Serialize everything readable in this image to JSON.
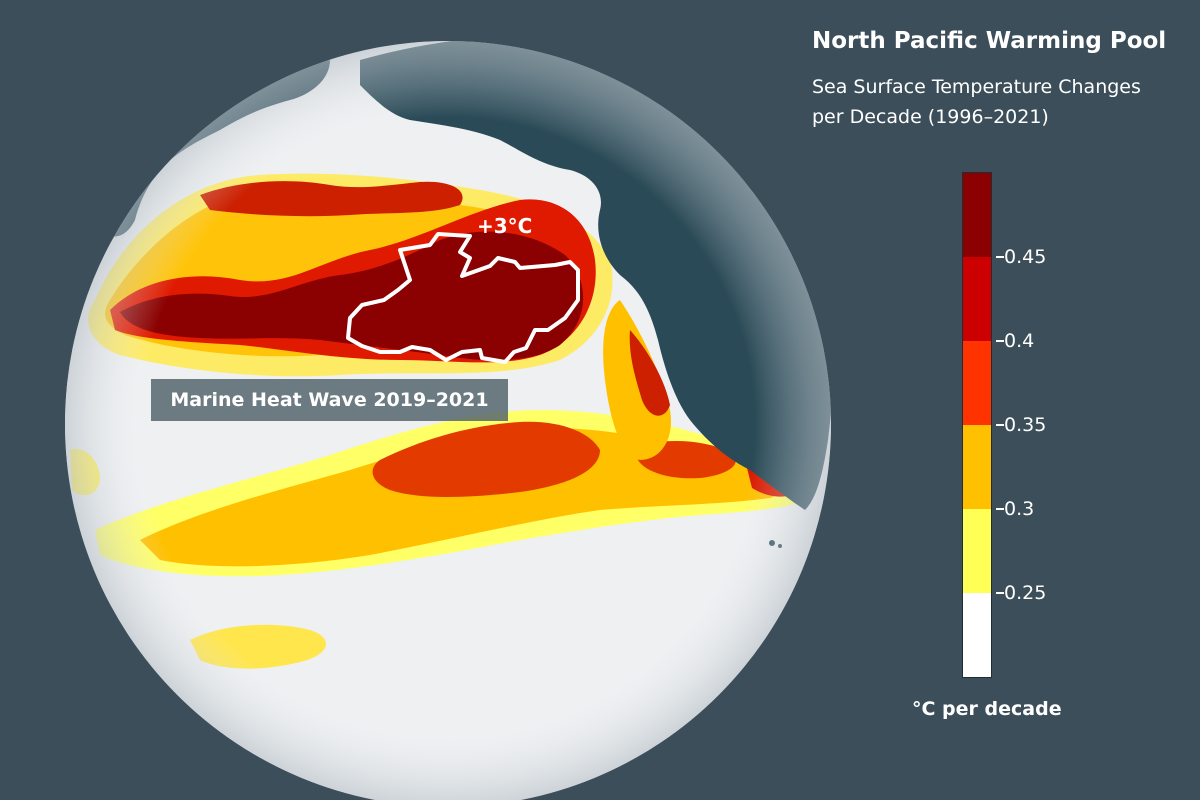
{
  "title": "North Pacific Warming Pool",
  "subtitle_line1": "Sea Surface Temperature Changes",
  "subtitle_line2": "per Decade (1996–2021)",
  "legend": {
    "unit": "°C per decade",
    "bins": [
      {
        "range": "> 0.45",
        "color": "#8b0000"
      },
      {
        "range": "0.4 – 0.45",
        "color": "#cc0000"
      },
      {
        "range": "0.35 – 0.4",
        "color": "#ff3300"
      },
      {
        "range": "0.3 – 0.35",
        "color": "#ffc000"
      },
      {
        "range": "0.25 – 0.3",
        "color": "#ffff55"
      },
      {
        "range": "< 0.25",
        "color": "#ffffff"
      }
    ],
    "ticks": [
      "0.45",
      "0.4",
      "0.35",
      "0.3",
      "0.25"
    ]
  },
  "annotations": {
    "heat_wave_label": "Marine Heat Wave 2019–2021",
    "peak_anomaly": "+3°C"
  },
  "colors": {
    "background": "#3c4e59",
    "land": "#2a4a57",
    "ocean": "#eef0f2"
  }
}
